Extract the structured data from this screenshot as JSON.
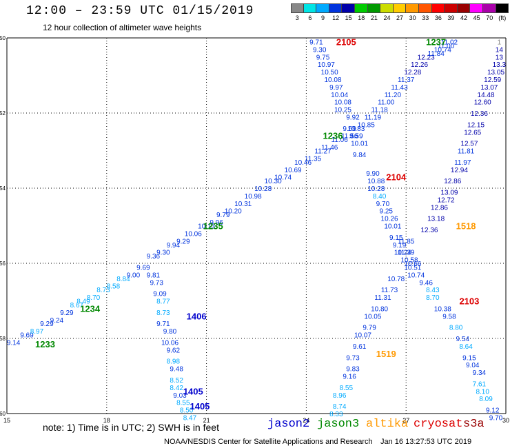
{
  "header": {
    "title": "12:00 – 23:59 UTC 01/15/2019",
    "subtitle": "12 hour collection of altimeter wave heights"
  },
  "colorbar": {
    "unit": "(ft)",
    "colors": [
      "#888888",
      "#00e5e5",
      "#00aaff",
      "#0033dd",
      "#0000aa",
      "#00cc00",
      "#009900",
      "#ccdd00",
      "#ffcc00",
      "#ff9900",
      "#ff5500",
      "#ff0000",
      "#cc0000",
      "#990000",
      "#ff00ff",
      "#aa00aa",
      "#000000"
    ],
    "labels": [
      "3",
      "6",
      "9",
      "12",
      "15",
      "18",
      "21",
      "24",
      "27",
      "30",
      "33",
      "36",
      "39",
      "42",
      "45",
      "70",
      ""
    ]
  },
  "map": {
    "lon_ticks": [
      "15",
      "18",
      "21",
      "24",
      "27",
      "30"
    ],
    "lat_ticks": [
      "-50",
      "-52",
      "-54",
      "-56",
      "-58",
      "-60"
    ]
  },
  "tracks": [
    {
      "id": "jason3-a",
      "satellite": "jason3",
      "times": [
        {
          "text": "1233",
          "lon": 16.15,
          "lat": -58.15
        },
        {
          "text": "1234",
          "lon": 17.5,
          "lat": -57.2
        },
        {
          "text": "1235",
          "lon": 21.2,
          "lat": -55.0
        },
        {
          "text": "1236",
          "lon": 24.8,
          "lat": -52.6
        },
        {
          "text": "1237",
          "lon": 27.9,
          "lat": -50.1
        }
      ],
      "points": [
        {
          "v": "9.14",
          "lon": 15.2,
          "lat": -58.1
        },
        {
          "v": "9.69",
          "lon": 15.6,
          "lat": -57.9
        },
        {
          "v": "8.97",
          "lon": 15.9,
          "lat": -57.8
        },
        {
          "v": "9.29",
          "lon": 16.2,
          "lat": -57.6
        },
        {
          "v": "9.24",
          "lon": 16.5,
          "lat": -57.5
        },
        {
          "v": "9.29",
          "lon": 16.8,
          "lat": -57.3
        },
        {
          "v": "8.67",
          "lon": 17.1,
          "lat": -57.1
        },
        {
          "v": "8.49",
          "lon": 17.3,
          "lat": -57.0
        },
        {
          "v": "8.70",
          "lon": 17.6,
          "lat": -56.9
        },
        {
          "v": "8.73",
          "lon": 17.9,
          "lat": -56.7
        },
        {
          "v": "8.58",
          "lon": 18.2,
          "lat": -56.6
        },
        {
          "v": "8.84",
          "lon": 18.5,
          "lat": -56.4
        },
        {
          "v": "9.00",
          "lon": 18.8,
          "lat": -56.3
        },
        {
          "v": "9.69",
          "lon": 19.1,
          "lat": -56.1
        },
        {
          "v": "9.36",
          "lon": 19.4,
          "lat": -55.8
        },
        {
          "v": "9.30",
          "lon": 19.7,
          "lat": -55.7
        },
        {
          "v": "9.94",
          "lon": 20.0,
          "lat": -55.5
        },
        {
          "v": "9.29",
          "lon": 20.3,
          "lat": -55.4
        },
        {
          "v": "10.06",
          "lon": 20.6,
          "lat": -55.2
        },
        {
          "v": "10.13",
          "lon": 21.0,
          "lat": -55.0
        },
        {
          "v": "9.96",
          "lon": 21.3,
          "lat": -54.9
        },
        {
          "v": "9.79",
          "lon": 21.5,
          "lat": -54.7
        },
        {
          "v": "10.20",
          "lon": 21.8,
          "lat": -54.6
        },
        {
          "v": "10.31",
          "lon": 22.1,
          "lat": -54.4
        },
        {
          "v": "10.98",
          "lon": 22.4,
          "lat": -54.2
        },
        {
          "v": "10.28",
          "lon": 22.7,
          "lat": -54.0
        },
        {
          "v": "10.30",
          "lon": 23.0,
          "lat": -53.8
        },
        {
          "v": "10.74",
          "lon": 23.3,
          "lat": -53.7
        },
        {
          "v": "10.69",
          "lon": 23.6,
          "lat": -53.5
        },
        {
          "v": "10.46",
          "lon": 23.9,
          "lat": -53.3
        },
        {
          "v": "11.35",
          "lon": 24.2,
          "lat": -53.2
        },
        {
          "v": "11.27",
          "lon": 24.5,
          "lat": -53.0
        },
        {
          "v": "11.46",
          "lon": 24.7,
          "lat": -52.9
        },
        {
          "v": "11.06",
          "lon": 25.0,
          "lat": -52.7
        },
        {
          "v": "11.56",
          "lon": 25.3,
          "lat": -52.6
        },
        {
          "v": "10.83",
          "lon": 25.5,
          "lat": -52.4
        },
        {
          "v": "10.85",
          "lon": 25.8,
          "lat": -52.3
        },
        {
          "v": "11.19",
          "lon": 26.0,
          "lat": -52.1
        },
        {
          "v": "11.18",
          "lon": 26.2,
          "lat": -51.9
        },
        {
          "v": "11.00",
          "lon": 26.4,
          "lat": -51.7
        },
        {
          "v": "11.20",
          "lon": 26.6,
          "lat": -51.5
        },
        {
          "v": "11.43",
          "lon": 26.8,
          "lat": -51.3
        },
        {
          "v": "11.37",
          "lon": 27.0,
          "lat": -51.1
        },
        {
          "v": "12.28",
          "lon": 27.2,
          "lat": -50.9
        },
        {
          "v": "12.26",
          "lon": 27.4,
          "lat": -50.7
        },
        {
          "v": "12.23",
          "lon": 27.6,
          "lat": -50.5
        },
        {
          "v": "11.84",
          "lon": 27.9,
          "lat": -50.4
        },
        {
          "v": "10.74",
          "lon": 28.1,
          "lat": -50.3
        },
        {
          "v": "11.00",
          "lon": 28.2,
          "lat": -50.2
        },
        {
          "v": "11.02",
          "lon": 28.3,
          "lat": -50.1
        }
      ]
    },
    {
      "id": "jason2-a",
      "satellite": "jason2",
      "times": [
        {
          "text": "1406",
          "lon": 20.7,
          "lat": -57.4
        },
        {
          "text": "1405",
          "lon": 20.6,
          "lat": -59.4
        },
        {
          "text": "1405",
          "lon": 20.8,
          "lat": -59.8
        }
      ],
      "points": [
        {
          "v": "9.81",
          "lon": 19.4,
          "lat": -56.3
        },
        {
          "v": "9.73",
          "lon": 19.5,
          "lat": -56.5
        },
        {
          "v": "9.09",
          "lon": 19.6,
          "lat": -56.8
        },
        {
          "v": "8.77",
          "lon": 19.7,
          "lat": -57.0
        },
        {
          "v": "8.73",
          "lon": 19.7,
          "lat": -57.3
        },
        {
          "v": "9.71",
          "lon": 19.7,
          "lat": -57.6
        },
        {
          "v": "9.80",
          "lon": 19.9,
          "lat": -57.8
        },
        {
          "v": "10.06",
          "lon": 19.9,
          "lat": -58.1
        },
        {
          "v": "9.62",
          "lon": 20.0,
          "lat": -58.3
        },
        {
          "v": "8.98",
          "lon": 20.0,
          "lat": -58.6
        },
        {
          "v": "9.48",
          "lon": 20.1,
          "lat": -58.8
        },
        {
          "v": "8.52",
          "lon": 20.1,
          "lat": -59.1
        },
        {
          "v": "8.42",
          "lon": 20.1,
          "lat": -59.3
        },
        {
          "v": "9.03",
          "lon": 20.2,
          "lat": -59.5
        },
        {
          "v": "8.55",
          "lon": 20.3,
          "lat": -59.7
        },
        {
          "v": "8.50",
          "lon": 20.4,
          "lat": -59.9
        },
        {
          "v": "8.47",
          "lon": 20.5,
          "lat": -60.1
        }
      ]
    },
    {
      "id": "cryosat-a",
      "satellite": "cryosat",
      "times": [
        {
          "text": "2105",
          "lon": 25.2,
          "lat": -50.1
        },
        {
          "text": "2104",
          "lon": 26.7,
          "lat": -53.7
        },
        {
          "text": "2103",
          "lon": 28.9,
          "lat": -57.0
        }
      ],
      "points": [
        {
          "v": "9.71",
          "lon": 24.3,
          "lat": -50.1
        },
        {
          "v": "9.30",
          "lon": 24.4,
          "lat": -50.3
        },
        {
          "v": "9.75",
          "lon": 24.5,
          "lat": -50.5
        },
        {
          "v": "10.97",
          "lon": 24.6,
          "lat": -50.7
        },
        {
          "v": "10.50",
          "lon": 24.7,
          "lat": -50.9
        },
        {
          "v": "10.08",
          "lon": 24.8,
          "lat": -51.1
        },
        {
          "v": "9.97",
          "lon": 24.9,
          "lat": -51.3
        },
        {
          "v": "10.04",
          "lon": 25.0,
          "lat": -51.5
        },
        {
          "v": "10.08",
          "lon": 25.1,
          "lat": -51.7
        },
        {
          "v": "10.25",
          "lon": 25.1,
          "lat": -51.9
        },
        {
          "v": "9.92",
          "lon": 25.4,
          "lat": -52.1
        },
        {
          "v": "9.69",
          "lon": 25.3,
          "lat": -52.4
        },
        {
          "v": "9.59",
          "lon": 25.5,
          "lat": -52.6
        },
        {
          "v": "10.01",
          "lon": 25.6,
          "lat": -52.8
        },
        {
          "v": "9.84",
          "lon": 25.6,
          "lat": -53.1
        },
        {
          "v": "9.90",
          "lon": 26.0,
          "lat": -53.6
        },
        {
          "v": "10.88",
          "lon": 26.1,
          "lat": -53.8
        },
        {
          "v": "10.28",
          "lon": 26.1,
          "lat": -54.0
        },
        {
          "v": "8.40",
          "lon": 26.2,
          "lat": -54.2
        },
        {
          "v": "9.70",
          "lon": 26.3,
          "lat": -54.4
        },
        {
          "v": "9.25",
          "lon": 26.4,
          "lat": -54.6
        },
        {
          "v": "10.26",
          "lon": 26.5,
          "lat": -54.8
        },
        {
          "v": "10.01",
          "lon": 26.6,
          "lat": -55.0
        },
        {
          "v": "9.15",
          "lon": 26.7,
          "lat": -55.3
        },
        {
          "v": "9.19",
          "lon": 26.8,
          "lat": -55.5
        },
        {
          "v": "10.24",
          "lon": 26.9,
          "lat": -55.7
        },
        {
          "v": "10.66",
          "lon": 27.2,
          "lat": -56.0
        },
        {
          "v": "10.51",
          "lon": 27.2,
          "lat": -56.1
        },
        {
          "v": "10.74",
          "lon": 27.3,
          "lat": -56.3
        },
        {
          "v": "9.46",
          "lon": 27.6,
          "lat": -56.5
        },
        {
          "v": "8.43",
          "lon": 27.8,
          "lat": -56.7
        },
        {
          "v": "8.70",
          "lon": 27.8,
          "lat": -56.9
        },
        {
          "v": "10.38",
          "lon": 28.1,
          "lat": -57.2
        },
        {
          "v": "9.58",
          "lon": 28.3,
          "lat": -57.4
        },
        {
          "v": "8.80",
          "lon": 28.5,
          "lat": -57.7
        },
        {
          "v": "9.54",
          "lon": 28.7,
          "lat": -58.0
        },
        {
          "v": "8.64",
          "lon": 28.8,
          "lat": -58.2
        },
        {
          "v": "9.15",
          "lon": 28.9,
          "lat": -58.5
        },
        {
          "v": "9.04",
          "lon": 29.0,
          "lat": -58.7
        },
        {
          "v": "9.34",
          "lon": 29.2,
          "lat": -58.9
        },
        {
          "v": "7.61",
          "lon": 29.2,
          "lat": -59.2
        },
        {
          "v": "8.10",
          "lon": 29.3,
          "lat": -59.4
        },
        {
          "v": "8.09",
          "lon": 29.4,
          "lat": -59.6
        },
        {
          "v": "9.12",
          "lon": 29.6,
          "lat": -59.9
        },
        {
          "v": "9.70",
          "lon": 29.7,
          "lat": -60.1
        }
      ]
    },
    {
      "id": "cryosat-b",
      "satellite": "cryosat",
      "times": [],
      "points": [
        {
          "v": "11.39",
          "lon": 27.0,
          "lat": -55.7
        },
        {
          "v": "11.85",
          "lon": 27.0,
          "lat": -55.4
        },
        {
          "v": "10.58",
          "lon": 27.1,
          "lat": -55.9
        },
        {
          "v": "10.78",
          "lon": 26.7,
          "lat": -56.4
        },
        {
          "v": "11.73",
          "lon": 26.5,
          "lat": -56.7
        },
        {
          "v": "11.31",
          "lon": 26.3,
          "lat": -56.9
        },
        {
          "v": "10.80",
          "lon": 26.2,
          "lat": -57.2
        },
        {
          "v": "10.05",
          "lon": 26.0,
          "lat": -57.4
        },
        {
          "v": "9.79",
          "lon": 25.9,
          "lat": -57.7
        },
        {
          "v": "10.07",
          "lon": 25.7,
          "lat": -57.9
        },
        {
          "v": "9.61",
          "lon": 25.6,
          "lat": -58.2
        },
        {
          "v": "9.73",
          "lon": 25.4,
          "lat": -58.5
        },
        {
          "v": "9.83",
          "lon": 25.4,
          "lat": -58.8
        },
        {
          "v": "9.16",
          "lon": 25.3,
          "lat": -59.0
        },
        {
          "v": "8.55",
          "lon": 25.2,
          "lat": -59.3
        },
        {
          "v": "8.96",
          "lon": 25.0,
          "lat": -59.5
        },
        {
          "v": "8.74",
          "lon": 25.0,
          "lat": -59.8
        },
        {
          "v": "8.33",
          "lon": 24.9,
          "lat": -60.0
        }
      ]
    },
    {
      "id": "altika-a",
      "satellite": "altika",
      "times": [
        {
          "text": "1518",
          "lon": 28.8,
          "lat": -55.0
        },
        {
          "text": "1519",
          "lon": 26.4,
          "lat": -58.4
        }
      ],
      "points": [
        {
          "v": "1",
          "lon": 29.8,
          "lat": -50.1
        },
        {
          "v": "14",
          "lon": 29.8,
          "lat": -50.3
        },
        {
          "v": "13",
          "lon": 29.8,
          "lat": -50.5
        },
        {
          "v": "13.3",
          "lon": 29.8,
          "lat": -50.7
        },
        {
          "v": "13.05",
          "lon": 29.7,
          "lat": -50.9
        },
        {
          "v": "12.59",
          "lon": 29.6,
          "lat": -51.1
        },
        {
          "v": "13.07",
          "lon": 29.5,
          "lat": -51.3
        },
        {
          "v": "14.48",
          "lon": 29.4,
          "lat": -51.5
        },
        {
          "v": "12.60",
          "lon": 29.3,
          "lat": -51.7
        },
        {
          "v": "12.36",
          "lon": 29.2,
          "lat": -52.0
        },
        {
          "v": "12.15",
          "lon": 29.1,
          "lat": -52.3
        },
        {
          "v": "12.65",
          "lon": 29.0,
          "lat": -52.5
        },
        {
          "v": "12.57",
          "lon": 28.9,
          "lat": -52.8
        },
        {
          "v": "11.81",
          "lon": 28.8,
          "lat": -53.0
        },
        {
          "v": "11.97",
          "lon": 28.7,
          "lat": -53.3
        },
        {
          "v": "12.94",
          "lon": 28.6,
          "lat": -53.5
        },
        {
          "v": "12.86",
          "lon": 28.4,
          "lat": -53.8
        },
        {
          "v": "13.09",
          "lon": 28.3,
          "lat": -54.1
        },
        {
          "v": "12.72",
          "lon": 28.2,
          "lat": -54.3
        },
        {
          "v": "12.86",
          "lon": 28.0,
          "lat": -54.5
        },
        {
          "v": "13.18",
          "lon": 27.9,
          "lat": -54.8
        },
        {
          "v": "12.36",
          "lon": 27.7,
          "lat": -55.1
        }
      ]
    }
  ],
  "legend": {
    "note": "note: 1) Time is in UTC; 2) SWH is in feet",
    "items": [
      {
        "label": "jason2",
        "color": "#0000cc"
      },
      {
        "label": "jason3",
        "color": "#008800"
      },
      {
        "label": "altika",
        "color": "#ff9900"
      },
      {
        "label": "cryosat",
        "color": "#dd0000"
      },
      {
        "label": "s3a",
        "color": "#990000"
      }
    ]
  },
  "footer": {
    "credit": "NOAA/NESDIS Center for Satellite Applications and Research",
    "timestamp": "Jan 16 13:27:53 UTC 2019"
  },
  "sat_colors": {
    "jason2": "#0000cc",
    "jason3": "#008800",
    "altika": "#ff9900",
    "cryosat": "#dd0000",
    "s3a": "#990000"
  }
}
